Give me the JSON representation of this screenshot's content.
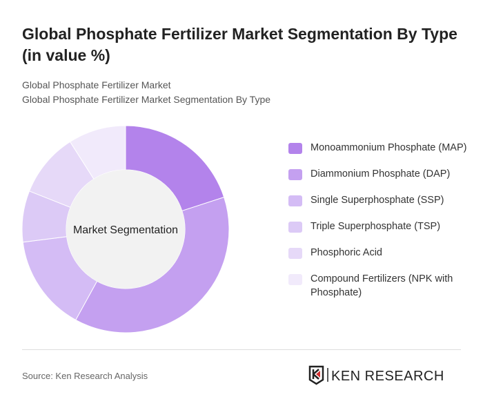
{
  "title": "Global Phosphate Fertilizer Market Segmentation By Type (in value %)",
  "subtitle1": "Global Phosphate Fertilizer Market",
  "subtitle2": "Global Phosphate Fertilizer Market Segmentation By Type",
  "source": "Source: Ken Research Analysis",
  "logo_text": "KEN RESEARCH",
  "chart_data": {
    "type": "pie",
    "donut": true,
    "center_label": "Market Segmentation",
    "legend_position": "right",
    "categories": [
      "Monoammonium Phosphate (MAP)",
      "Diammonium Phosphate (DAP)",
      "Single Superphosphate (SSP)",
      "Triple Superphosphate (TSP)",
      "Phosphoric Acid",
      "Compound Fertilizers (NPK with Phosphate)"
    ],
    "values": [
      20,
      38,
      15,
      8,
      10,
      9
    ],
    "colors": [
      "#b383eb",
      "#c4a0f0",
      "#d4bcf5",
      "#dccaf6",
      "#e6d9f8",
      "#f1eafb"
    ]
  }
}
